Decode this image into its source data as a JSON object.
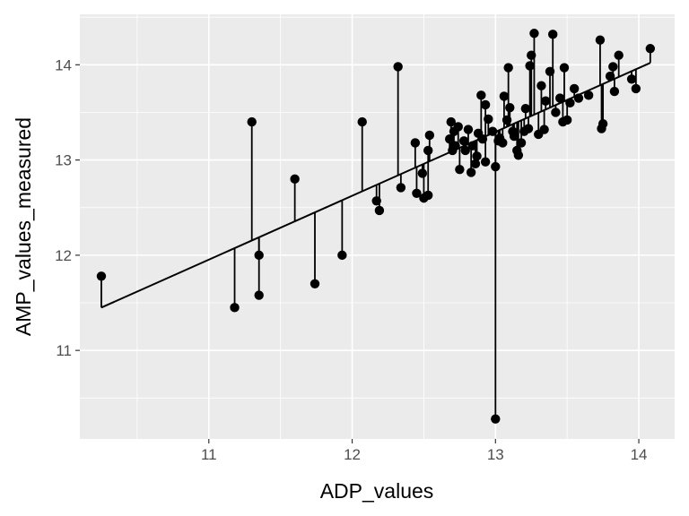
{
  "chart_data": {
    "type": "scatter",
    "title": "",
    "xlabel": "ADP_values",
    "ylabel": "AMP_values_measured",
    "xlim": [
      10.1,
      14.25
    ],
    "ylim": [
      10.07,
      14.53
    ],
    "x_ticks": [
      11,
      12,
      13,
      14
    ],
    "y_ticks": [
      11,
      12,
      13,
      14
    ],
    "x_tick_labels": [
      "11",
      "12",
      "13",
      "14"
    ],
    "y_tick_labels": [
      "11",
      "12",
      "13",
      "14"
    ],
    "grid": true,
    "panel_background": "#ebebeb",
    "point_color": "#000000",
    "fit_line": {
      "x": [
        10.25,
        14.08
      ],
      "y": [
        11.45,
        14.02
      ]
    },
    "series": [
      {
        "x": [
          10.25,
          11.18,
          11.3,
          11.35,
          11.35,
          11.6,
          11.74,
          11.93,
          12.07,
          12.17,
          12.19,
          12.32,
          12.34,
          12.44,
          12.45,
          12.49,
          12.5,
          12.53,
          12.53,
          12.54,
          12.68,
          12.69,
          12.7,
          12.71,
          12.72,
          12.74,
          12.75,
          12.78,
          12.79,
          12.81,
          12.83,
          12.84,
          12.86,
          12.87,
          12.88,
          12.9,
          12.91,
          12.93,
          12.93,
          12.95,
          12.98,
          13.0,
          13.0,
          13.02,
          13.03,
          13.05,
          13.06,
          13.08,
          13.09,
          13.1,
          13.12,
          13.13,
          13.15,
          13.16,
          13.18,
          13.2,
          13.21,
          13.23,
          13.24,
          13.25,
          13.27,
          13.3,
          13.32,
          13.34,
          13.35,
          13.38,
          13.4,
          13.42,
          13.45,
          13.47,
          13.48,
          13.5,
          13.52,
          13.55,
          13.58,
          13.65,
          13.73,
          13.74,
          13.75,
          13.8,
          13.82,
          13.83,
          13.86,
          13.95,
          13.98,
          14.08
        ],
        "y": [
          11.78,
          11.45,
          13.4,
          11.58,
          12.0,
          12.8,
          11.7,
          12.0,
          13.4,
          12.57,
          12.47,
          13.98,
          12.71,
          13.18,
          12.65,
          12.86,
          12.6,
          13.1,
          12.63,
          13.26,
          13.22,
          13.4,
          13.1,
          13.3,
          13.15,
          13.35,
          12.9,
          13.2,
          13.1,
          13.32,
          12.87,
          13.15,
          12.96,
          13.04,
          13.28,
          13.68,
          13.22,
          13.58,
          12.98,
          13.43,
          13.3,
          10.28,
          12.93,
          13.2,
          13.23,
          13.18,
          13.67,
          13.42,
          13.97,
          13.55,
          13.3,
          13.25,
          13.1,
          13.05,
          13.18,
          13.3,
          13.54,
          13.33,
          13.99,
          14.1,
          14.33,
          13.27,
          13.78,
          13.32,
          13.62,
          13.93,
          14.32,
          13.5,
          13.65,
          13.4,
          13.97,
          13.42,
          13.6,
          13.75,
          13.65,
          13.68,
          14.26,
          13.33,
          13.38,
          13.88,
          13.98,
          13.72,
          14.1,
          13.85,
          13.75,
          14.17
        ]
      }
    ]
  }
}
